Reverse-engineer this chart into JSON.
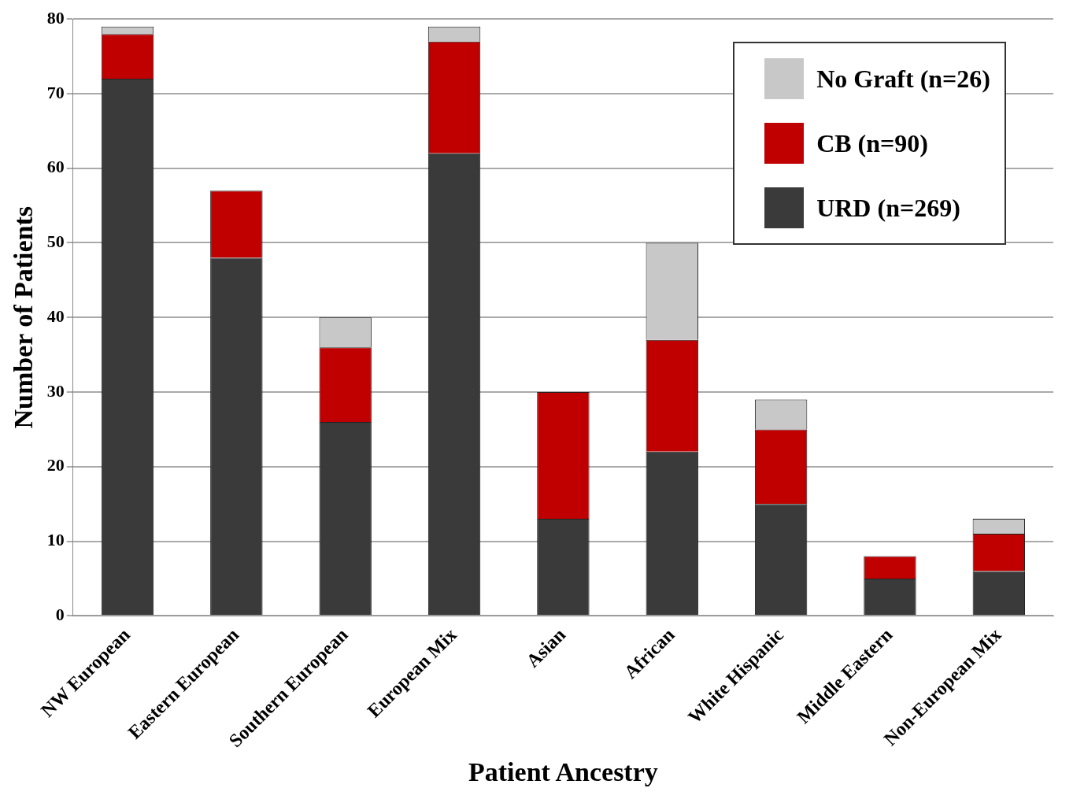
{
  "chart_data": {
    "type": "bar",
    "xlabel": "Patient Ancestry",
    "ylabel": "Number of Patients",
    "categories": [
      "NW European",
      "Eastern European",
      "Southern European",
      "European Mix",
      "Asian",
      "African",
      "White Hispanic",
      "Middle Eastern",
      "Non-European Mix"
    ],
    "series": [
      {
        "name": "URD (n=269)",
        "color": "#3a3a3a",
        "values": [
          72,
          48,
          26,
          62,
          13,
          22,
          15,
          5,
          6
        ]
      },
      {
        "name": "CB (n=90)",
        "color": "#c00000",
        "values": [
          6,
          9,
          10,
          15,
          17,
          15,
          10,
          3,
          5
        ]
      },
      {
        "name": "No Graft (n=26)",
        "color": "#c8c8c8",
        "values": [
          1,
          0,
          4,
          2,
          0,
          13,
          4,
          0,
          2
        ]
      }
    ],
    "stacked": true,
    "ylim": [
      0,
      80
    ],
    "yticks": [
      0,
      10,
      20,
      30,
      40,
      50,
      60,
      70,
      80
    ],
    "grid": "y",
    "legend": "top right"
  }
}
